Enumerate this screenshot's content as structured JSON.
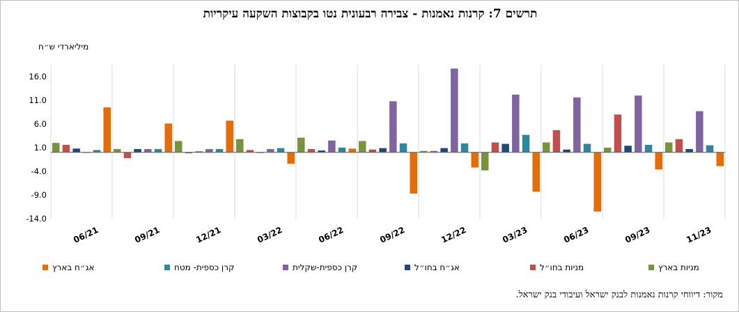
{
  "chart_data": {
    "type": "bar",
    "title": "תרשים 7: קרנות נאמנות - צבירה רבעונית נטו בקבוצות השקעה עיקריות",
    "ylabel": "מיליארדי ש״ח",
    "ylim": [
      -14,
      18.5
    ],
    "yticks": [
      -14.0,
      -9.0,
      -4.0,
      1.0,
      6.0,
      11.0,
      16.0
    ],
    "ytick_labels": [
      "-14.0",
      "-9.0",
      "-4.0",
      "1.0",
      "6.0",
      "11.0",
      "16.0"
    ],
    "categories": [
      "06/21",
      "09/21",
      "12/21",
      "03/22",
      "06/22",
      "09/22",
      "12/22",
      "03/23",
      "06/23",
      "09/23",
      "11/23"
    ],
    "grid": true,
    "legend_position": "bottom",
    "series": [
      {
        "name": "מניות בארץ",
        "color": "#77933c",
        "values": [
          2.0,
          0.7,
          2.4,
          2.8,
          3.1,
          2.4,
          0.3,
          -3.8,
          2.1,
          1.0,
          2.1
        ]
      },
      {
        "name": "מניות בחו״ל",
        "color": "#c0504d",
        "values": [
          1.6,
          -1.2,
          -0.2,
          0.5,
          0.7,
          0.6,
          0.3,
          2.1,
          4.7,
          8.0,
          2.8
        ]
      },
      {
        "name": "אג״ח בחו״ל",
        "color": "#1f497d",
        "values": [
          0.8,
          0.7,
          0.2,
          0.0,
          0.4,
          0.9,
          0.9,
          1.8,
          0.6,
          1.4,
          0.7
        ]
      },
      {
        "name": "קרן כספית-שקלית",
        "color": "#8064a2",
        "values": [
          0.0,
          0.7,
          0.7,
          0.7,
          2.5,
          10.8,
          17.7,
          12.2,
          11.6,
          12.0,
          8.7
        ]
      },
      {
        "name": "קרן כספית- מטח",
        "color": "#31859c",
        "values": [
          0.5,
          0.7,
          0.7,
          0.9,
          1.0,
          1.9,
          1.9,
          3.7,
          1.8,
          1.6,
          1.5
        ]
      },
      {
        "name": "אג״ח בארץ",
        "color": "#e46c0a",
        "values": [
          9.5,
          6.1,
          6.7,
          -2.4,
          0.8,
          -8.7,
          -3.2,
          -8.3,
          -12.5,
          -3.6,
          -2.9
        ]
      }
    ]
  },
  "legend_order": [
    5,
    4,
    3,
    2,
    1,
    0
  ],
  "source_note": "מקור: דיווחי קרנות נאמנות לבנק ישראל ועיבודי בנק ישראל."
}
